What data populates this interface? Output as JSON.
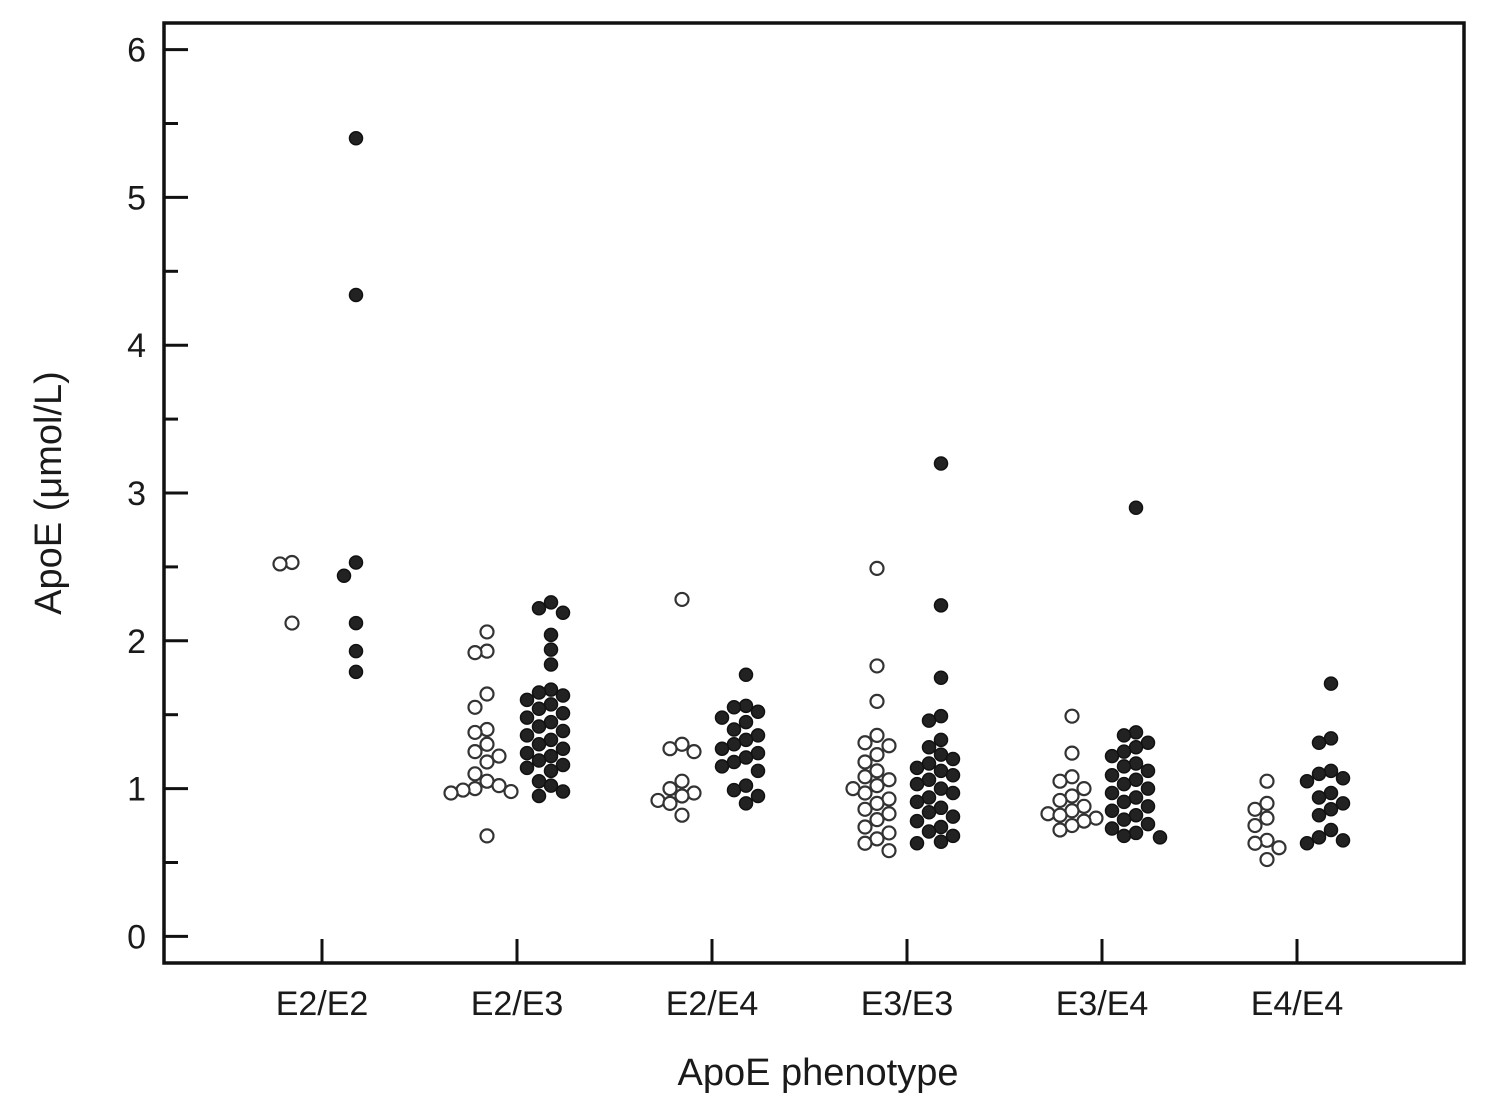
{
  "chart_data": {
    "type": "scatter",
    "title": "",
    "xlabel": "ApoE phenotype",
    "ylabel": "ApoE (μmol/L)",
    "ylim": [
      -0.18,
      6.18
    ],
    "yticks": [
      0,
      1,
      2,
      3,
      4,
      5,
      6
    ],
    "ytick_labels": [
      "0",
      "1",
      "2",
      "3",
      "4",
      "5",
      "6"
    ],
    "categories": [
      "E2/E2",
      "E2/E3",
      "E2/E4",
      "E3/E3",
      "E3/E4",
      "E4/E4"
    ],
    "grid": false,
    "legend": "none",
    "colors": {
      "open_fill": "#ffffff",
      "filled_fill": "#222222",
      "edge": "#111111"
    },
    "series": [
      {
        "marker": "open",
        "values": [
          [
            2.52,
            2.53,
            2.12
          ],
          [
            2.06,
            1.93,
            1.92,
            1.64,
            1.55,
            1.4,
            1.38,
            1.3,
            1.25,
            1.22,
            1.18,
            1.1,
            1.05,
            1.02,
            1.0,
            0.99,
            0.98,
            0.97,
            0.68
          ],
          [
            2.28,
            1.3,
            1.27,
            1.25,
            1.05,
            1.0,
            0.97,
            0.95,
            0.92,
            0.9,
            0.82
          ],
          [
            2.49,
            1.83,
            1.59,
            1.36,
            1.31,
            1.29,
            1.23,
            1.18,
            1.12,
            1.08,
            1.06,
            1.02,
            1.0,
            0.97,
            0.93,
            0.9,
            0.86,
            0.83,
            0.79,
            0.74,
            0.7,
            0.66,
            0.63,
            0.58
          ],
          [
            1.49,
            1.24,
            1.08,
            1.05,
            1.0,
            0.95,
            0.92,
            0.88,
            0.85,
            0.83,
            0.82,
            0.8,
            0.78,
            0.75,
            0.72
          ],
          [
            1.05,
            0.9,
            0.86,
            0.8,
            0.75,
            0.65,
            0.63,
            0.6,
            0.52
          ]
        ]
      },
      {
        "marker": "filled",
        "values": [
          [
            5.4,
            4.34,
            2.53,
            2.44,
            2.12,
            1.93,
            1.79
          ],
          [
            2.26,
            2.22,
            2.19,
            2.04,
            1.94,
            1.84,
            1.67,
            1.65,
            1.63,
            1.6,
            1.57,
            1.54,
            1.51,
            1.48,
            1.45,
            1.42,
            1.39,
            1.36,
            1.33,
            1.3,
            1.27,
            1.24,
            1.22,
            1.19,
            1.16,
            1.14,
            1.12,
            1.05,
            1.02,
            0.98,
            0.95
          ],
          [
            1.77,
            1.56,
            1.55,
            1.52,
            1.48,
            1.45,
            1.4,
            1.36,
            1.33,
            1.3,
            1.27,
            1.24,
            1.21,
            1.18,
            1.15,
            1.12,
            1.02,
            0.99,
            0.95,
            0.9
          ],
          [
            3.2,
            2.24,
            1.75,
            1.49,
            1.46,
            1.33,
            1.28,
            1.23,
            1.2,
            1.17,
            1.14,
            1.12,
            1.09,
            1.06,
            1.03,
            1.0,
            0.97,
            0.94,
            0.91,
            0.87,
            0.84,
            0.81,
            0.78,
            0.74,
            0.71,
            0.68,
            0.64,
            0.63
          ],
          [
            2.9,
            1.38,
            1.36,
            1.31,
            1.28,
            1.25,
            1.22,
            1.17,
            1.15,
            1.12,
            1.09,
            1.06,
            1.03,
            1.0,
            0.97,
            0.94,
            0.91,
            0.88,
            0.85,
            0.82,
            0.79,
            0.76,
            0.73,
            0.7,
            0.68,
            0.67
          ],
          [
            1.71,
            1.34,
            1.31,
            1.12,
            1.1,
            1.07,
            1.05,
            0.97,
            0.94,
            0.9,
            0.86,
            0.82,
            0.72,
            0.67,
            0.65,
            0.63
          ]
        ]
      }
    ]
  }
}
